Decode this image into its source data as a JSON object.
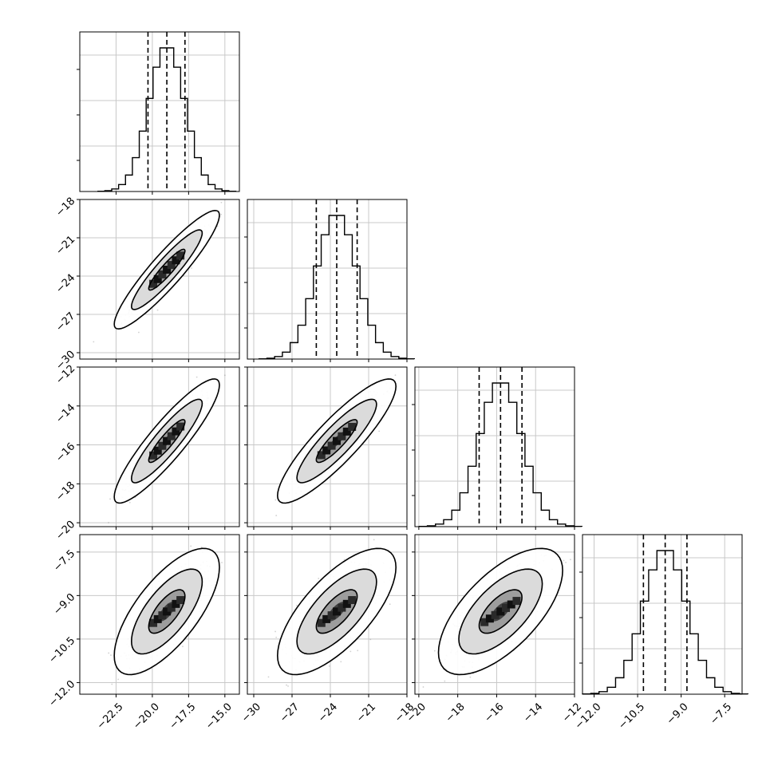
{
  "chart_data": {
    "type": "corner",
    "parameters": [
      {
        "range": [
          -25,
          -14
        ],
        "ticks": [
          -22.5,
          -20.0,
          -17.5,
          -15.0
        ],
        "tick_labels": [
          "−22.5",
          "−20.0",
          "−17.5",
          "−15.0"
        ],
        "quantiles": [
          -20.3,
          -19.0,
          -17.75
        ],
        "mean": -19.0,
        "sd": 1.25
      },
      {
        "range": [
          -30.5,
          -18
        ],
        "ticks": [
          -30,
          -27,
          -24,
          -21,
          -18
        ],
        "tick_labels": [
          "−30",
          "−27",
          "−24",
          "−21",
          "−18"
        ],
        "quantiles": [
          -25.1,
          -23.5,
          -21.9
        ],
        "mean": -23.5,
        "sd": 1.6
      },
      {
        "range": [
          -20.2,
          -12
        ],
        "ticks": [
          -20,
          -18,
          -16,
          -14,
          -12
        ],
        "tick_labels": [
          "−20",
          "−18",
          "−16",
          "−14",
          "−12"
        ],
        "quantiles": [
          -16.9,
          -15.8,
          -14.7
        ],
        "mean": -15.8,
        "sd": 1.1
      },
      {
        "range": [
          -12.4,
          -6.9
        ],
        "ticks": [
          -12.0,
          -10.5,
          -9.0,
          -7.5
        ],
        "tick_labels": [
          "−12.0",
          "−10.5",
          "−9.0",
          "−7.5"
        ],
        "quantiles": [
          -10.3,
          -9.55,
          -8.8
        ],
        "mean": -9.55,
        "sd": 0.75
      }
    ],
    "correlations": {
      "1-0": 0.92,
      "2-0": 0.9,
      "2-1": 0.88,
      "3-0": 0.7,
      "3-1": 0.7,
      "3-2": 0.65
    },
    "grid": true,
    "contour_levels": [
      0.39,
      0.86,
      0.99
    ]
  }
}
